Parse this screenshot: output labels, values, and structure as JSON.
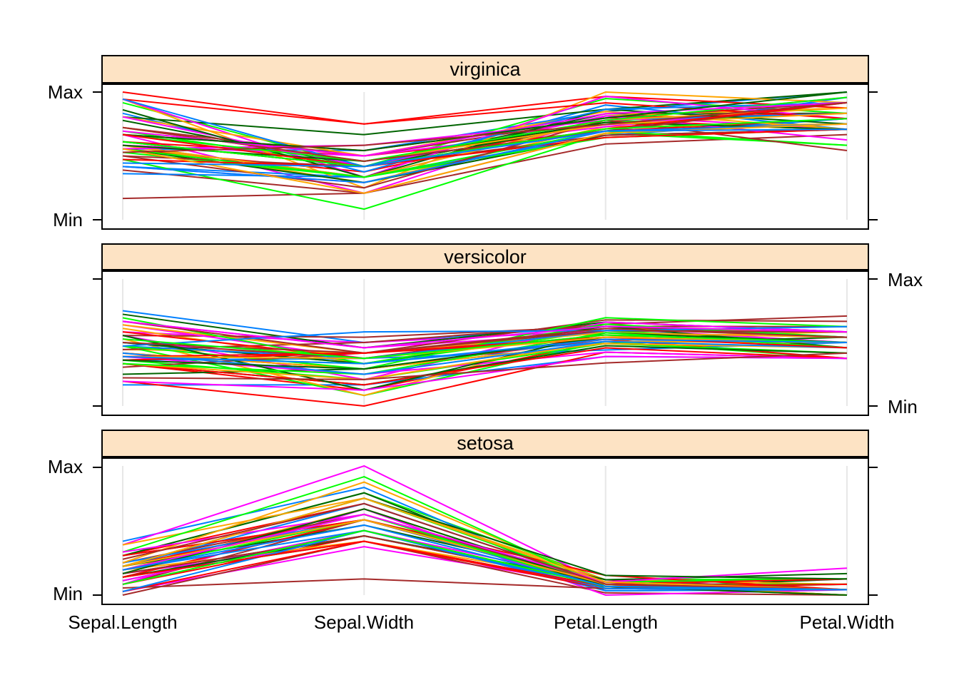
{
  "axis": {
    "max_label": "Max",
    "min_label": "Min"
  },
  "chart_data": {
    "type": "parallel-coordinates",
    "title": "",
    "variables": [
      "Sepal.Length",
      "Sepal.Width",
      "Petal.Length",
      "Petal.Width"
    ],
    "y_tick_labels": [
      "Min",
      "Max"
    ],
    "scaling": "each variable min-max scaled over all 150 rows",
    "variable_ranges": [
      [
        4.3,
        7.9
      ],
      [
        2.0,
        4.4
      ],
      [
        1.0,
        6.9
      ],
      [
        0.1,
        2.5
      ]
    ],
    "palette": [
      "#0080ff",
      "#ff00ff",
      "#006400",
      "#ff0000",
      "#ffa500",
      "#00ff00",
      "#a52a2a"
    ],
    "gridline_color": "#e7e7e7",
    "strip_fill": "#fde3c4",
    "panels": [
      {
        "species": "virginica",
        "label_side": "left",
        "rows": [
          [
            6.3,
            3.3,
            6.0,
            2.5
          ],
          [
            5.8,
            2.7,
            5.1,
            1.9
          ],
          [
            7.1,
            3.0,
            5.9,
            2.1
          ],
          [
            6.3,
            2.9,
            5.6,
            1.8
          ],
          [
            6.5,
            3.0,
            5.8,
            2.2
          ],
          [
            7.6,
            3.0,
            6.6,
            2.1
          ],
          [
            4.9,
            2.5,
            4.5,
            1.7
          ],
          [
            7.3,
            2.9,
            6.3,
            1.8
          ],
          [
            6.7,
            2.5,
            5.8,
            1.8
          ],
          [
            7.2,
            3.6,
            6.1,
            2.5
          ],
          [
            6.5,
            3.2,
            5.1,
            2.0
          ],
          [
            6.4,
            2.7,
            5.3,
            1.9
          ],
          [
            6.8,
            3.0,
            5.5,
            2.1
          ],
          [
            5.7,
            2.5,
            5.0,
            2.0
          ],
          [
            5.8,
            2.8,
            5.1,
            2.4
          ],
          [
            6.4,
            3.2,
            5.3,
            2.3
          ],
          [
            6.5,
            3.0,
            5.5,
            1.8
          ],
          [
            7.7,
            3.8,
            6.7,
            2.2
          ],
          [
            7.7,
            2.6,
            6.9,
            2.3
          ],
          [
            6.0,
            2.2,
            5.0,
            1.5
          ],
          [
            6.9,
            3.2,
            5.7,
            2.3
          ],
          [
            5.6,
            2.8,
            4.9,
            2.0
          ],
          [
            7.7,
            2.8,
            6.7,
            2.0
          ],
          [
            6.3,
            2.7,
            4.9,
            1.8
          ],
          [
            6.7,
            3.3,
            5.7,
            2.1
          ],
          [
            7.2,
            3.2,
            6.0,
            1.8
          ],
          [
            6.2,
            2.8,
            4.8,
            1.8
          ],
          [
            6.1,
            3.0,
            4.9,
            1.8
          ],
          [
            6.4,
            2.8,
            5.6,
            2.1
          ],
          [
            7.2,
            3.0,
            5.8,
            1.6
          ],
          [
            7.4,
            2.8,
            6.1,
            1.9
          ],
          [
            7.9,
            3.8,
            6.4,
            2.0
          ],
          [
            6.4,
            2.8,
            5.6,
            2.2
          ],
          [
            6.3,
            2.8,
            5.1,
            1.5
          ],
          [
            6.1,
            2.6,
            5.6,
            1.4
          ],
          [
            7.7,
            3.0,
            6.1,
            2.3
          ],
          [
            6.3,
            3.4,
            5.6,
            2.4
          ],
          [
            6.4,
            3.1,
            5.5,
            1.8
          ],
          [
            6.0,
            3.0,
            4.8,
            1.8
          ],
          [
            6.9,
            3.1,
            5.4,
            2.1
          ],
          [
            6.7,
            3.1,
            5.6,
            2.4
          ],
          [
            6.9,
            3.1,
            5.1,
            2.3
          ],
          [
            5.8,
            2.7,
            5.1,
            1.9
          ],
          [
            6.8,
            3.2,
            5.9,
            2.3
          ],
          [
            6.7,
            3.3,
            5.7,
            2.5
          ],
          [
            6.7,
            3.0,
            5.2,
            2.3
          ],
          [
            6.3,
            2.5,
            5.0,
            1.9
          ],
          [
            6.5,
            3.0,
            5.2,
            2.0
          ],
          [
            6.2,
            3.4,
            5.4,
            2.3
          ],
          [
            5.9,
            3.0,
            5.1,
            1.8
          ]
        ]
      },
      {
        "species": "versicolor",
        "label_side": "right",
        "rows": [
          [
            7.0,
            3.2,
            4.7,
            1.4
          ],
          [
            6.4,
            3.2,
            4.5,
            1.5
          ],
          [
            6.9,
            3.1,
            4.9,
            1.5
          ],
          [
            5.5,
            2.3,
            4.0,
            1.3
          ],
          [
            6.5,
            2.8,
            4.6,
            1.5
          ],
          [
            5.7,
            2.8,
            4.5,
            1.3
          ],
          [
            6.3,
            3.3,
            4.7,
            1.6
          ],
          [
            4.9,
            2.4,
            3.3,
            1.0
          ],
          [
            6.6,
            2.9,
            4.6,
            1.3
          ],
          [
            5.2,
            2.7,
            3.9,
            1.4
          ],
          [
            5.0,
            2.0,
            3.5,
            1.0
          ],
          [
            5.9,
            3.0,
            4.2,
            1.5
          ],
          [
            6.0,
            2.2,
            4.0,
            1.0
          ],
          [
            6.1,
            2.9,
            4.7,
            1.4
          ],
          [
            5.6,
            2.9,
            3.6,
            1.3
          ],
          [
            6.7,
            3.1,
            4.4,
            1.4
          ],
          [
            5.6,
            3.0,
            4.5,
            1.5
          ],
          [
            5.8,
            2.7,
            4.1,
            1.0
          ],
          [
            6.2,
            2.2,
            4.5,
            1.5
          ],
          [
            5.6,
            2.5,
            3.9,
            1.1
          ],
          [
            5.9,
            3.2,
            4.8,
            1.8
          ],
          [
            6.1,
            2.8,
            4.0,
            1.3
          ],
          [
            6.3,
            2.5,
            4.9,
            1.5
          ],
          [
            6.1,
            2.8,
            4.7,
            1.2
          ],
          [
            6.4,
            2.9,
            4.3,
            1.3
          ],
          [
            6.6,
            3.0,
            4.4,
            1.4
          ],
          [
            6.8,
            2.8,
            4.8,
            1.4
          ],
          [
            6.7,
            3.0,
            5.0,
            1.7
          ],
          [
            6.0,
            2.9,
            4.5,
            1.5
          ],
          [
            5.7,
            2.6,
            3.5,
            1.0
          ],
          [
            5.5,
            2.4,
            3.8,
            1.1
          ],
          [
            5.5,
            2.4,
            3.7,
            1.0
          ],
          [
            5.8,
            2.7,
            3.9,
            1.2
          ],
          [
            6.0,
            2.7,
            5.1,
            1.6
          ],
          [
            5.4,
            3.0,
            4.5,
            1.5
          ],
          [
            6.0,
            3.4,
            4.5,
            1.6
          ],
          [
            6.7,
            3.1,
            4.7,
            1.5
          ],
          [
            6.3,
            2.3,
            4.4,
            1.3
          ],
          [
            5.6,
            3.0,
            4.1,
            1.3
          ],
          [
            5.5,
            2.5,
            4.0,
            1.3
          ],
          [
            5.5,
            2.6,
            4.4,
            1.2
          ],
          [
            6.1,
            3.0,
            4.6,
            1.4
          ],
          [
            5.8,
            2.6,
            4.0,
            1.2
          ],
          [
            5.0,
            2.3,
            3.3,
            1.0
          ],
          [
            5.6,
            2.7,
            4.2,
            1.3
          ],
          [
            5.7,
            3.0,
            4.2,
            1.2
          ],
          [
            5.7,
            2.9,
            4.2,
            1.3
          ],
          [
            6.2,
            2.9,
            4.3,
            1.3
          ],
          [
            5.1,
            2.5,
            3.0,
            1.1
          ],
          [
            5.7,
            2.8,
            4.1,
            1.3
          ]
        ]
      },
      {
        "species": "setosa",
        "label_side": "left",
        "rows": [
          [
            5.1,
            3.5,
            1.4,
            0.2
          ],
          [
            4.9,
            3.0,
            1.4,
            0.2
          ],
          [
            4.7,
            3.2,
            1.3,
            0.2
          ],
          [
            4.6,
            3.1,
            1.5,
            0.2
          ],
          [
            5.0,
            3.6,
            1.4,
            0.2
          ],
          [
            5.4,
            3.9,
            1.7,
            0.4
          ],
          [
            4.6,
            3.4,
            1.4,
            0.3
          ],
          [
            5.0,
            3.4,
            1.5,
            0.2
          ],
          [
            4.4,
            2.9,
            1.4,
            0.2
          ],
          [
            4.9,
            3.1,
            1.5,
            0.1
          ],
          [
            5.4,
            3.7,
            1.5,
            0.2
          ],
          [
            4.8,
            3.4,
            1.6,
            0.2
          ],
          [
            4.8,
            3.0,
            1.4,
            0.1
          ],
          [
            4.3,
            3.0,
            1.1,
            0.1
          ],
          [
            5.8,
            4.0,
            1.2,
            0.2
          ],
          [
            5.7,
            4.4,
            1.5,
            0.4
          ],
          [
            5.4,
            3.9,
            1.3,
            0.4
          ],
          [
            5.1,
            3.5,
            1.4,
            0.3
          ],
          [
            5.7,
            3.8,
            1.7,
            0.3
          ],
          [
            5.1,
            3.8,
            1.5,
            0.3
          ],
          [
            5.4,
            3.4,
            1.7,
            0.2
          ],
          [
            5.1,
            3.7,
            1.5,
            0.4
          ],
          [
            4.6,
            3.6,
            1.0,
            0.2
          ],
          [
            5.1,
            3.3,
            1.7,
            0.5
          ],
          [
            4.8,
            3.4,
            1.9,
            0.2
          ],
          [
            5.0,
            3.0,
            1.6,
            0.2
          ],
          [
            5.0,
            3.4,
            1.6,
            0.4
          ],
          [
            5.2,
            3.5,
            1.5,
            0.2
          ],
          [
            5.2,
            3.4,
            1.4,
            0.2
          ],
          [
            4.7,
            3.2,
            1.6,
            0.2
          ],
          [
            4.8,
            3.1,
            1.6,
            0.2
          ],
          [
            5.4,
            3.4,
            1.5,
            0.4
          ],
          [
            5.2,
            4.1,
            1.5,
            0.1
          ],
          [
            5.5,
            4.2,
            1.4,
            0.2
          ],
          [
            4.9,
            3.1,
            1.5,
            0.2
          ],
          [
            5.0,
            3.2,
            1.2,
            0.2
          ],
          [
            5.5,
            3.5,
            1.3,
            0.2
          ],
          [
            4.9,
            3.6,
            1.4,
            0.1
          ],
          [
            4.4,
            3.0,
            1.3,
            0.2
          ],
          [
            5.1,
            3.4,
            1.5,
            0.2
          ],
          [
            5.0,
            3.5,
            1.3,
            0.3
          ],
          [
            4.5,
            2.3,
            1.3,
            0.3
          ],
          [
            4.4,
            3.2,
            1.3,
            0.2
          ],
          [
            5.0,
            3.5,
            1.6,
            0.6
          ],
          [
            5.1,
            3.8,
            1.9,
            0.4
          ],
          [
            4.8,
            3.0,
            1.4,
            0.3
          ],
          [
            5.1,
            3.8,
            1.6,
            0.2
          ],
          [
            4.6,
            3.2,
            1.4,
            0.2
          ],
          [
            5.3,
            3.7,
            1.5,
            0.2
          ],
          [
            5.0,
            3.3,
            1.4,
            0.2
          ]
        ]
      }
    ]
  }
}
